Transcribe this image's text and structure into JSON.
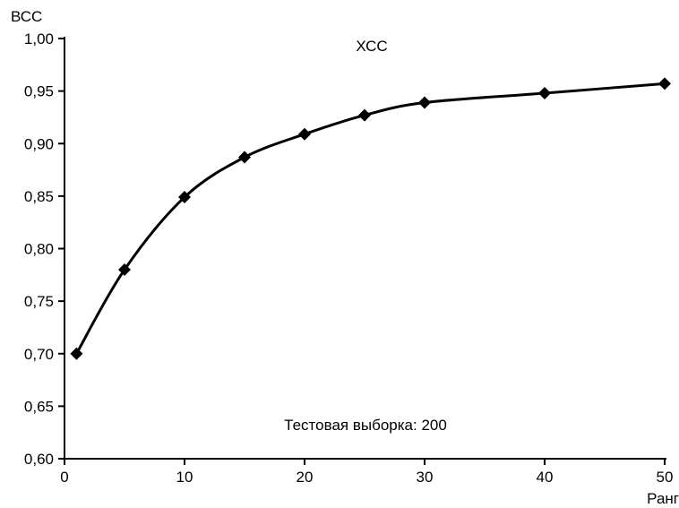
{
  "chart_data": {
    "type": "line",
    "title": "",
    "ylabel": "ВСС",
    "xlabel": "Ранг",
    "annotations": {
      "series_label": "ХСС",
      "sample_note": "Тестовая выборка: 200"
    },
    "xlim": [
      0,
      50
    ],
    "ylim": [
      0.6,
      1.0
    ],
    "x_ticks": [
      0,
      10,
      20,
      30,
      40,
      50
    ],
    "y_ticks": [
      0.6,
      0.65,
      0.7,
      0.75,
      0.8,
      0.85,
      0.9,
      0.95,
      1.0
    ],
    "x_tick_labels": [
      "0",
      "10",
      "20",
      "30",
      "40",
      "50"
    ],
    "y_tick_labels": [
      "0,60",
      "0,65",
      "0,70",
      "0,75",
      "0,80",
      "0,85",
      "0,90",
      "0,95",
      "1,00"
    ],
    "grid": false,
    "marker": "diamond",
    "line_color": "#000000",
    "series": [
      {
        "x": [
          1,
          5,
          10,
          15,
          20,
          25,
          30,
          40,
          50
        ],
        "values": [
          0.7,
          0.78,
          0.849,
          0.887,
          0.909,
          0.927,
          0.939,
          0.948,
          0.957
        ]
      }
    ]
  }
}
